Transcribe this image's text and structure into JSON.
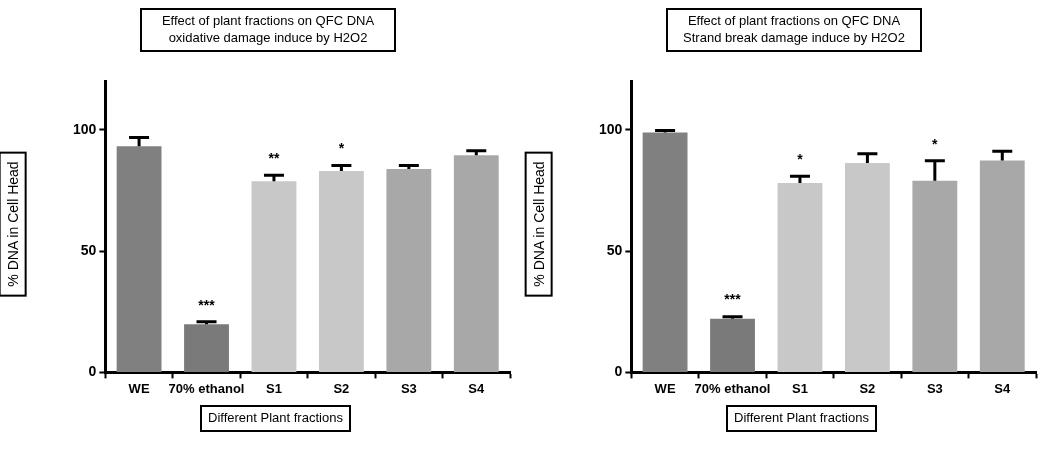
{
  "chart_data": [
    {
      "type": "bar",
      "title": "Effect of plant fractions on QFC DNA oxidative damage induce by H2O2",
      "xlabel": "Different Plant fractions",
      "ylabel": "% DNA in Cell Head",
      "categories": [
        "WE",
        "70% ethanol",
        "S1",
        "S2",
        "S3",
        "S4"
      ],
      "values": [
        93.3,
        19.9,
        78.8,
        83.1,
        83.9,
        89.5
      ],
      "errors": [
        3.6,
        1,
        2.5,
        2.2,
        1.4,
        1.9
      ],
      "colors": [
        "#808080",
        "#7a7a7a",
        "#c8c8c8",
        "#c8c8c8",
        "#a8a8a8",
        "#a8a8a8"
      ],
      "ylim": [
        0,
        120
      ],
      "yticks": [
        0,
        50,
        100
      ],
      "grid": false,
      "legend": false,
      "annotations": [
        {
          "text": "***",
          "x": "70% ethanol",
          "y": 20.9
        },
        {
          "text": "**",
          "x": "S1",
          "y": 81.3
        },
        {
          "text": "*",
          "x": "S2",
          "y": 85.3
        }
      ]
    },
    {
      "type": "bar",
      "title": "Effect of plant fractions on QFC DNA Strand break damage induce by H2O2",
      "xlabel": "Different Plant fractions",
      "ylabel": "% DNA in Cell Head",
      "categories": [
        "WE",
        "70% ethanol",
        "S1",
        "S2",
        "S3",
        "S4"
      ],
      "values": [
        98.9,
        22.1,
        78.1,
        86.4,
        79.0,
        87.4
      ],
      "errors": [
        0.9,
        0.9,
        2.8,
        3.8,
        8.3,
        3.8
      ],
      "colors": [
        "#808080",
        "#7a7a7a",
        "#c8c8c8",
        "#c8c8c8",
        "#a8a8a8",
        "#a8a8a8"
      ],
      "ylim": [
        0,
        120
      ],
      "yticks": [
        0,
        50,
        100
      ],
      "grid": false,
      "legend": false,
      "annotations": [
        {
          "text": "***",
          "x": "70% ethanol",
          "y": 23.0
        },
        {
          "text": "*",
          "x": "S1",
          "y": 80.9
        },
        {
          "text": "*",
          "x": "S3",
          "y": 87.3
        }
      ]
    }
  ]
}
